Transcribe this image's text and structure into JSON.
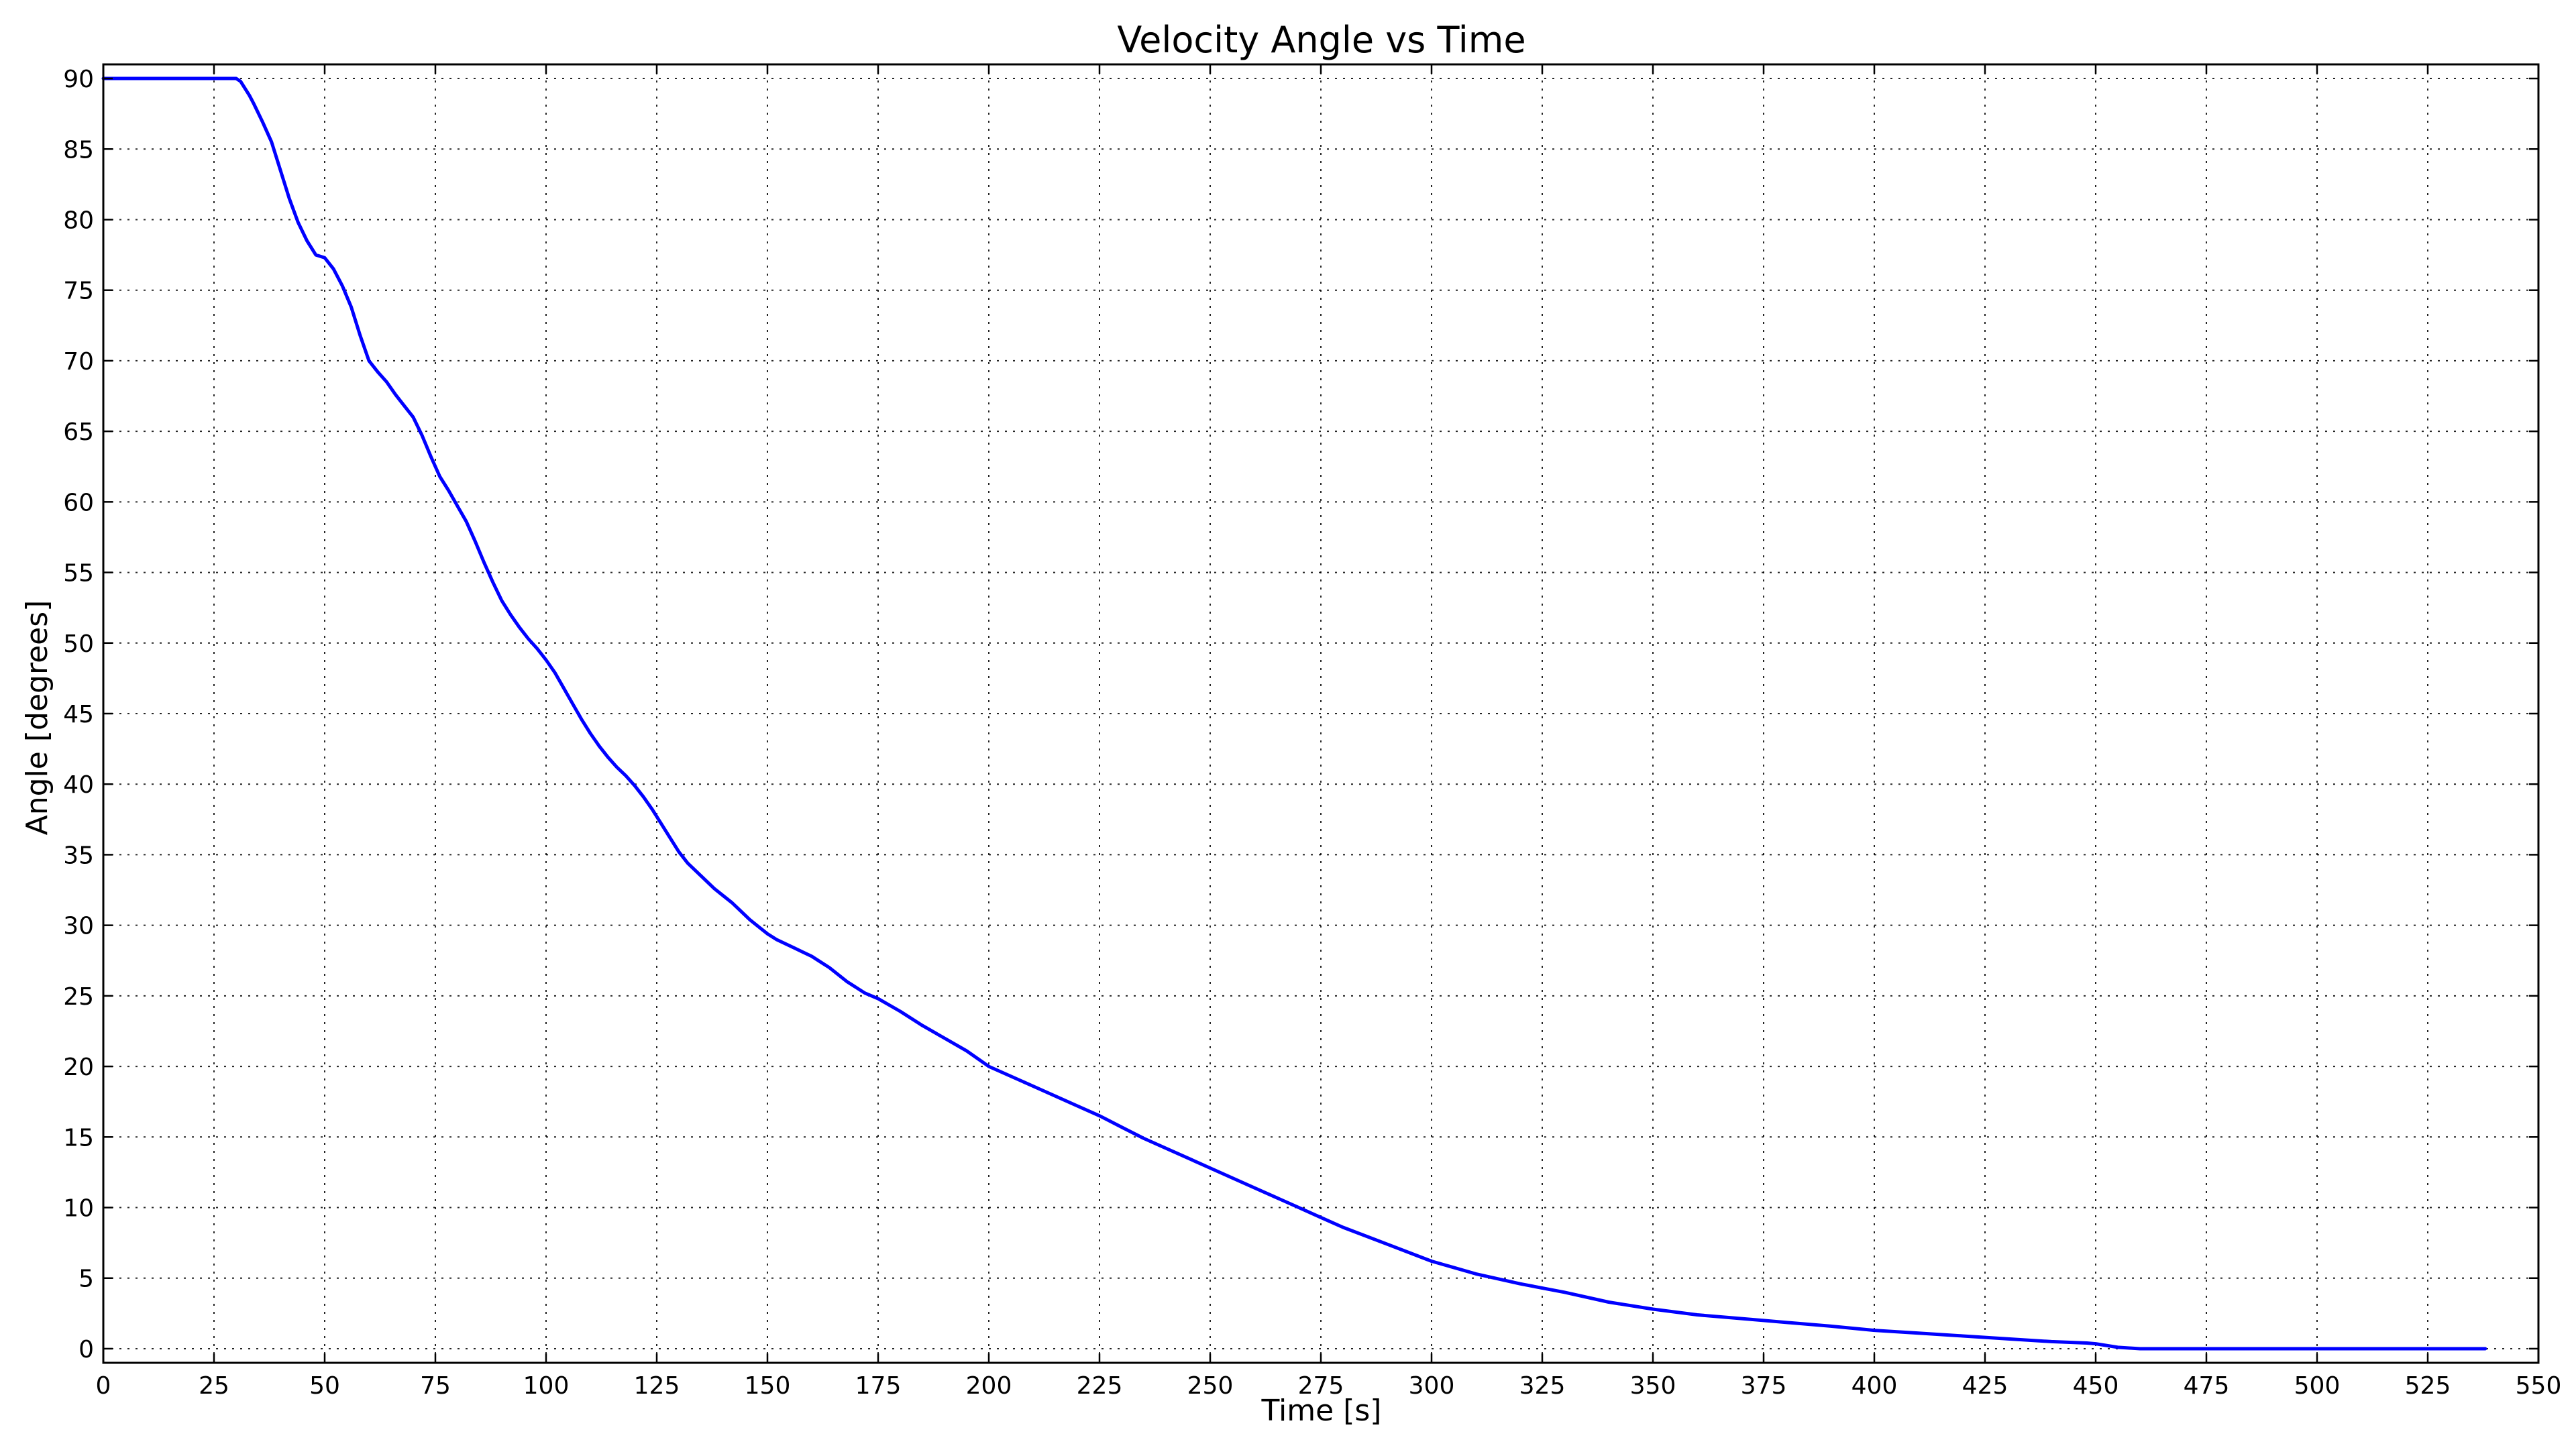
{
  "chart_data": {
    "type": "line",
    "title": "Velocity Angle vs Time",
    "xlabel": "Time [s]",
    "ylabel": "Angle [degrees]",
    "xlim": [
      0,
      550
    ],
    "ylim": [
      -1,
      91
    ],
    "xticks": [
      0,
      25,
      50,
      75,
      100,
      125,
      150,
      175,
      200,
      225,
      250,
      275,
      300,
      325,
      350,
      375,
      400,
      425,
      450,
      475,
      500,
      525,
      550
    ],
    "yticks": [
      0,
      5,
      10,
      15,
      20,
      25,
      30,
      35,
      40,
      45,
      50,
      55,
      60,
      65,
      70,
      75,
      80,
      85,
      90
    ],
    "grid": true,
    "legend": "none",
    "series": [
      {
        "color": "#0000ff",
        "x": [
          0,
          30,
          31,
          33,
          34,
          36,
          38,
          40,
          42,
          44,
          46,
          48,
          50,
          52,
          54,
          56,
          58,
          60,
          62,
          64,
          66,
          68,
          70,
          72,
          74,
          76,
          78,
          80,
          82,
          84,
          86,
          88,
          90,
          92,
          94,
          96,
          98,
          100,
          102,
          104,
          106,
          108,
          110,
          112,
          114,
          116,
          118,
          120,
          122,
          124,
          126,
          128,
          130,
          132,
          134,
          136,
          138,
          140,
          142,
          144,
          146,
          148,
          150,
          152,
          154,
          156,
          158,
          160,
          162,
          164,
          166,
          168,
          170,
          172,
          175,
          180,
          185,
          190,
          195,
          200,
          210,
          220,
          225,
          230,
          235,
          240,
          250,
          260,
          270,
          275,
          280,
          290,
          300,
          310,
          320,
          330,
          340,
          350,
          360,
          375,
          390,
          400,
          410,
          420,
          430,
          440,
          448,
          450,
          455,
          460,
          470,
          500,
          525,
          538
        ],
        "y": [
          90,
          90,
          89.8,
          88.8,
          88.2,
          86.9,
          85.5,
          83.5,
          81.5,
          79.8,
          78.5,
          77.5,
          77.3,
          76.5,
          75.3,
          73.8,
          71.8,
          70,
          69.2,
          68.5,
          67.6,
          66.8,
          66,
          64.7,
          63.2,
          61.8,
          60.8,
          59.7,
          58.6,
          57.2,
          55.7,
          54.3,
          53,
          52,
          51.1,
          50.3,
          49.6,
          48.8,
          47.9,
          46.8,
          45.7,
          44.6,
          43.6,
          42.7,
          41.9,
          41.2,
          40.6,
          39.9,
          39.1,
          38.2,
          37.2,
          36.2,
          35.2,
          34.4,
          33.8,
          33.2,
          32.6,
          32.1,
          31.6,
          31,
          30.4,
          29.9,
          29.4,
          29,
          28.7,
          28.4,
          28.1,
          27.8,
          27.4,
          27,
          26.5,
          26,
          25.6,
          25.2,
          24.8,
          23.9,
          22.9,
          22,
          21.1,
          20,
          18.6,
          17.2,
          16.5,
          15.7,
          14.9,
          14.2,
          12.8,
          11.4,
          10,
          9.3,
          8.6,
          7.4,
          6.2,
          5.3,
          4.6,
          4,
          3.3,
          2.8,
          2.4,
          2,
          1.6,
          1.3,
          1.1,
          0.9,
          0.7,
          0.5,
          0.4,
          0.35,
          0.1,
          0,
          0,
          0,
          0,
          0
        ]
      }
    ]
  }
}
